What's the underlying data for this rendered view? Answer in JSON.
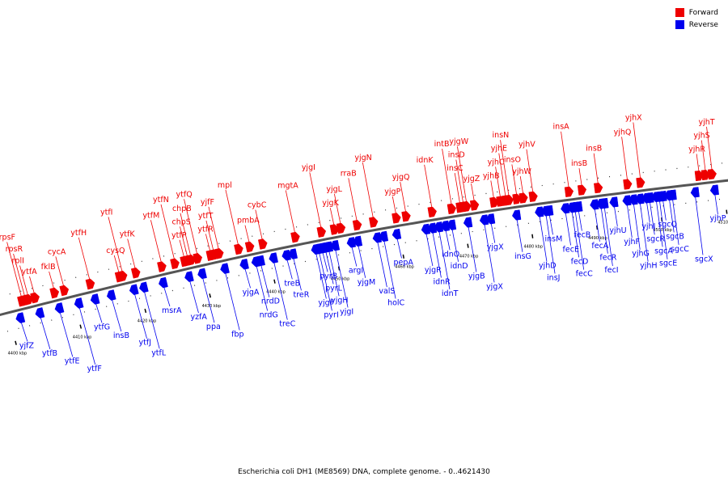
{
  "caption": "Escherichia coli DH1 (ME8569) DNA, complete genome. - 0..4621430",
  "legend": [
    {
      "label": "Forward",
      "color": "#ee0000"
    },
    {
      "label": "Reverse",
      "color": "#0000ee"
    }
  ],
  "colors": {
    "forward": "#ee0000",
    "reverse": "#0000ee",
    "backbone": "#555555"
  },
  "ticks": [
    {
      "label": "4400 kbp",
      "pos": 4400
    },
    {
      "label": "4410 kbp",
      "pos": 4410
    },
    {
      "label": "4420 kbp",
      "pos": 4420
    },
    {
      "label": "4430 kbp",
      "pos": 4430
    },
    {
      "label": "4440 kbp",
      "pos": 4440
    },
    {
      "label": "4450 kbp",
      "pos": 4450
    },
    {
      "label": "4460 kbp",
      "pos": 4460
    },
    {
      "label": "4470 kbp",
      "pos": 4470
    },
    {
      "label": "4480 kbp",
      "pos": 4480
    },
    {
      "label": "4490 kbp",
      "pos": 4490
    },
    {
      "label": "4500 kbp",
      "pos": 4500
    },
    {
      "label": "4510 kbp",
      "pos": 4510
    }
  ],
  "forward_genes": [
    {
      "name": "ytfA",
      "pos": 4404.5
    },
    {
      "name": "rplI",
      "pos": 4403.5
    },
    {
      "name": "rpsR",
      "pos": 4403.0
    },
    {
      "name": "rpsF",
      "pos": 4402.5
    },
    {
      "name": "fklB",
      "pos": 4407.5
    },
    {
      "name": "cycA",
      "pos": 4409.0
    },
    {
      "name": "ytfH",
      "pos": 4413.0
    },
    {
      "name": "ytfI",
      "pos": 4418.0
    },
    {
      "name": "cysQ",
      "pos": 4417.5
    },
    {
      "name": "ytfK",
      "pos": 4420.0
    },
    {
      "name": "ytfM",
      "pos": 4424.0
    },
    {
      "name": "ytfN",
      "pos": 4426.0
    },
    {
      "name": "ytfP",
      "pos": 4427.5
    },
    {
      "name": "chpS",
      "pos": 4428.0
    },
    {
      "name": "chpB",
      "pos": 4428.5
    },
    {
      "name": "ytfQ",
      "pos": 4429.5
    },
    {
      "name": "ytfR",
      "pos": 4431.5
    },
    {
      "name": "ytfT",
      "pos": 4432.0
    },
    {
      "name": "yjfF",
      "pos": 4432.8
    },
    {
      "name": "mpl",
      "pos": 4435.8
    },
    {
      "name": "pmbA",
      "pos": 4437.5
    },
    {
      "name": "cybC",
      "pos": 4439.5
    },
    {
      "name": "mgtA",
      "pos": 4444.5
    },
    {
      "name": "yjgI",
      "pos": 4448.5
    },
    {
      "name": "yjgK",
      "pos": 4450.5
    },
    {
      "name": "yjgL",
      "pos": 4451.5
    },
    {
      "name": "rraB",
      "pos": 4454.0
    },
    {
      "name": "yjgN",
      "pos": 4456.5
    },
    {
      "name": "yjgP",
      "pos": 4460.0
    },
    {
      "name": "yjgQ",
      "pos": 4461.5
    },
    {
      "name": "idnK",
      "pos": 4465.5
    },
    {
      "name": "intB",
      "pos": 4468.5
    },
    {
      "name": "yjgZ",
      "pos": 4472.0
    },
    {
      "name": "insC",
      "pos": 4469.8
    },
    {
      "name": "insD",
      "pos": 4470.3
    },
    {
      "name": "yjgW",
      "pos": 4470.8
    },
    {
      "name": "yjhB",
      "pos": 4475.0
    },
    {
      "name": "yjhC",
      "pos": 4476.0
    },
    {
      "name": "yjhE",
      "pos": 4476.8
    },
    {
      "name": "insN",
      "pos": 4477.3
    },
    {
      "name": "yjhW",
      "pos": 4479.5
    },
    {
      "name": "insO",
      "pos": 4478.5
    },
    {
      "name": "yjhV",
      "pos": 4481.0
    },
    {
      "name": "insA",
      "pos": 4486.5
    },
    {
      "name": "insB",
      "pos": 4488.5
    },
    {
      "name": "insB",
      "pos": 4491.0
    },
    {
      "name": "yjhQ",
      "pos": 4495.5
    },
    {
      "name": "yjhX",
      "pos": 4497.5
    },
    {
      "name": "yjhR",
      "pos": 4506.5
    },
    {
      "name": "yjhS",
      "pos": 4507.5
    },
    {
      "name": "yjhT",
      "pos": 4508.5
    }
  ],
  "reverse_genes": [
    {
      "name": "yjfZ",
      "pos": 4401.5
    },
    {
      "name": "ytfB",
      "pos": 4404.5
    },
    {
      "name": "ytfE",
      "pos": 4407.5
    },
    {
      "name": "ytfF",
      "pos": 4410.5
    },
    {
      "name": "ytfG",
      "pos": 4413.0
    },
    {
      "name": "insB",
      "pos": 4415.5
    },
    {
      "name": "ytfJ",
      "pos": 4419.0
    },
    {
      "name": "ytfL",
      "pos": 4420.5
    },
    {
      "name": "msrA",
      "pos": 4423.5
    },
    {
      "name": "yzfA",
      "pos": 4427.5
    },
    {
      "name": "ppa",
      "pos": 4429.5
    },
    {
      "name": "fbp",
      "pos": 4433.0
    },
    {
      "name": "yjgA",
      "pos": 4436.0
    },
    {
      "name": "nrdD",
      "pos": 4438.5
    },
    {
      "name": "nrdG",
      "pos": 4437.8
    },
    {
      "name": "treC",
      "pos": 4440.5
    },
    {
      "name": "treB",
      "pos": 4442.5
    },
    {
      "name": "treR",
      "pos": 4443.5
    },
    {
      "name": "yjgF",
      "pos": 4447.0
    },
    {
      "name": "pyrI",
      "pos": 4447.5
    },
    {
      "name": "pyrB",
      "pos": 4448.0
    },
    {
      "name": "pyrL",
      "pos": 4448.5
    },
    {
      "name": "yjgH",
      "pos": 4449.0
    },
    {
      "name": "yjgI",
      "pos": 4450.0
    },
    {
      "name": "argI",
      "pos": 4452.5
    },
    {
      "name": "yjgM",
      "pos": 4453.5
    },
    {
      "name": "valS",
      "pos": 4456.5
    },
    {
      "name": "holC",
      "pos": 4457.5
    },
    {
      "name": "pepA",
      "pos": 4459.5
    },
    {
      "name": "yjgR",
      "pos": 4464.0
    },
    {
      "name": "idnR",
      "pos": 4465.0
    },
    {
      "name": "idnT",
      "pos": 4466.0
    },
    {
      "name": "idnO",
      "pos": 4467.0
    },
    {
      "name": "idnD",
      "pos": 4468.0
    },
    {
      "name": "yjgB",
      "pos": 4470.5
    },
    {
      "name": "yjgX",
      "pos": 4473.0
    },
    {
      "name": "yjgX",
      "pos": 4474.0
    },
    {
      "name": "insG",
      "pos": 4478.0
    },
    {
      "name": "yjhD",
      "pos": 4481.5
    },
    {
      "name": "insJ",
      "pos": 4482.5
    },
    {
      "name": "insM",
      "pos": 4483.0
    },
    {
      "name": "fecE",
      "pos": 4485.5
    },
    {
      "name": "fecD",
      "pos": 4486.5
    },
    {
      "name": "fecC",
      "pos": 4487.0
    },
    {
      "name": "fecB",
      "pos": 4487.5
    },
    {
      "name": "fecA",
      "pos": 4490.0
    },
    {
      "name": "fecR",
      "pos": 4491.0
    },
    {
      "name": "fecI",
      "pos": 4491.5
    },
    {
      "name": "yjhU",
      "pos": 4493.0
    },
    {
      "name": "yjhF",
      "pos": 4495.0
    },
    {
      "name": "yjhG",
      "pos": 4496.0
    },
    {
      "name": "yjhH",
      "pos": 4497.0
    },
    {
      "name": "yjhI",
      "pos": 4498.0
    },
    {
      "name": "sgcR",
      "pos": 4498.5
    },
    {
      "name": "sgcA",
      "pos": 4499.5
    },
    {
      "name": "sgcE",
      "pos": 4500.0
    },
    {
      "name": "sgcQ",
      "pos": 4500.5
    },
    {
      "name": "sgcB",
      "pos": 4501.5
    },
    {
      "name": "sgcC",
      "pos": 4502.0
    },
    {
      "name": "sgcX",
      "pos": 4505.5
    },
    {
      "name": "yjhP",
      "pos": 4508.5
    }
  ]
}
